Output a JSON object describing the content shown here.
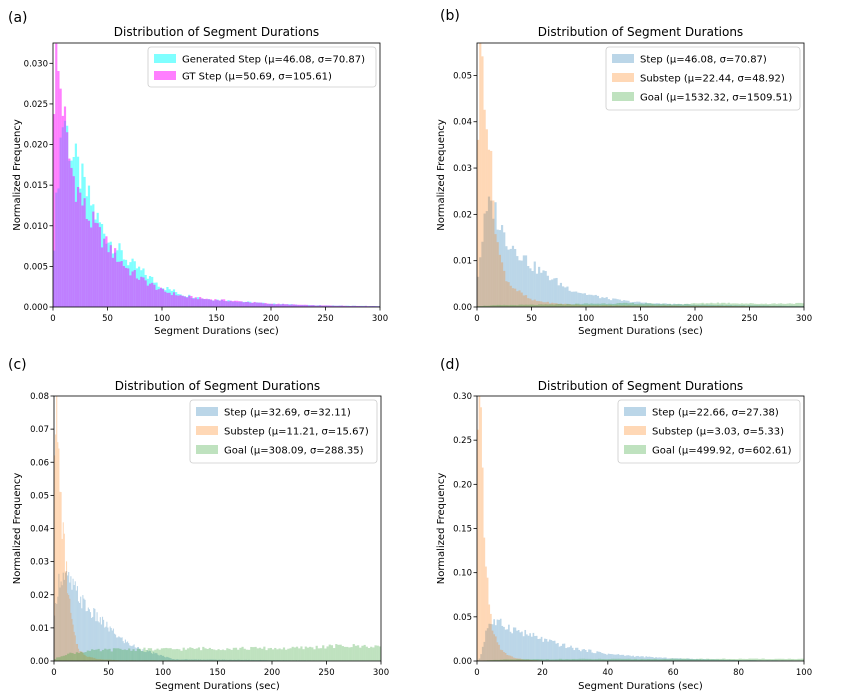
{
  "chart_data": [
    {
      "panel": "(a)",
      "type": "bar",
      "subtype": "overlaid-histogram",
      "title": "Distribution of Segment Durations",
      "xlabel": "Segment Durations (sec)",
      "ylabel": "Normalized Frequency",
      "xlim": [
        0,
        300
      ],
      "ylim": [
        0,
        0.0325
      ],
      "xticks": [
        0,
        50,
        100,
        150,
        200,
        250,
        300
      ],
      "yticks": [
        0.0,
        0.005,
        0.01,
        0.015,
        0.02,
        0.025,
        0.03
      ],
      "yticklabels": [
        "0.000",
        "0.005",
        "0.010",
        "0.015",
        "0.020",
        "0.025",
        "0.030"
      ],
      "legend_position": "top-right",
      "series": [
        {
          "name": "Generated Step",
          "label": "Generated Step (μ=46.08, σ=70.87)",
          "color": "#00ffff",
          "opacity": 0.5,
          "mu": 46.08,
          "sigma": 70.87,
          "bin_width": 2,
          "bins_x": [
            0,
            6,
            8,
            10,
            12,
            14,
            16,
            18,
            20,
            24,
            28,
            32,
            36,
            40,
            50,
            60,
            70,
            80,
            90,
            100,
            120,
            140,
            160,
            180,
            200,
            240,
            300
          ],
          "bins_y": [
            0.006,
            0.019,
            0.022,
            0.024,
            0.0225,
            0.0205,
            0.0195,
            0.0185,
            0.018,
            0.0165,
            0.015,
            0.0135,
            0.0125,
            0.011,
            0.0085,
            0.007,
            0.0055,
            0.0045,
            0.0035,
            0.0025,
            0.0015,
            0.001,
            0.0008,
            0.0006,
            0.0004,
            0.0002,
            0.0001
          ]
        },
        {
          "name": "GT Step",
          "label": "GT Step (μ=50.69, σ=105.61)",
          "color": "#ff00ff",
          "opacity": 0.5,
          "mu": 50.69,
          "sigma": 105.61,
          "bin_width": 2,
          "bins_x": [
            0,
            2,
            4,
            6,
            8,
            10,
            12,
            14,
            16,
            18,
            20,
            24,
            28,
            32,
            36,
            40,
            50,
            60,
            70,
            80,
            90,
            100,
            120,
            140,
            160,
            180,
            200,
            240,
            300
          ],
          "bins_y": [
            0.021,
            0.0315,
            0.029,
            0.028,
            0.0265,
            0.024,
            0.021,
            0.019,
            0.0175,
            0.0165,
            0.0155,
            0.014,
            0.0125,
            0.011,
            0.0105,
            0.0095,
            0.0075,
            0.006,
            0.0045,
            0.0035,
            0.0028,
            0.002,
            0.0013,
            0.001,
            0.0008,
            0.0006,
            0.0004,
            0.0002,
            0.0001
          ]
        }
      ]
    },
    {
      "panel": "(b)",
      "type": "bar",
      "subtype": "overlaid-histogram",
      "title": "Distribution of Segment Durations",
      "xlabel": "Segment Durations (sec)",
      "ylabel": "Normalized Frequency",
      "xlim": [
        0,
        300
      ],
      "ylim": [
        0,
        0.057
      ],
      "xticks": [
        0,
        50,
        100,
        150,
        200,
        250,
        300
      ],
      "yticks": [
        0.0,
        0.01,
        0.02,
        0.03,
        0.04,
        0.05
      ],
      "yticklabels": [
        "0.00",
        "0.01",
        "0.02",
        "0.03",
        "0.04",
        "0.05"
      ],
      "legend_position": "top-right",
      "series": [
        {
          "name": "Step",
          "label": "Step (μ=46.08, σ=70.87)",
          "color": "#1f77b4",
          "opacity": 0.3,
          "mu": 46.08,
          "sigma": 70.87,
          "bin_width": 2,
          "bins_x": [
            0,
            6,
            10,
            14,
            18,
            22,
            26,
            30,
            40,
            50,
            60,
            70,
            80,
            90,
            100,
            120,
            140,
            160,
            200,
            300
          ],
          "bins_y": [
            0.005,
            0.017,
            0.021,
            0.022,
            0.02,
            0.017,
            0.015,
            0.014,
            0.0115,
            0.009,
            0.0075,
            0.006,
            0.0045,
            0.0035,
            0.0028,
            0.0018,
            0.0012,
            0.0008,
            0.0005,
            0.0002
          ]
        },
        {
          "name": "Substep",
          "label": "Substep (μ=22.44, σ=48.92)",
          "color": "#ff7f0e",
          "opacity": 0.3,
          "mu": 22.44,
          "sigma": 48.92,
          "bin_width": 2,
          "bins_x": [
            0,
            2,
            4,
            6,
            8,
            10,
            12,
            14,
            16,
            18,
            20,
            24,
            30,
            40,
            50,
            70,
            100,
            300
          ],
          "bins_y": [
            0.03,
            0.049,
            0.055,
            0.052,
            0.047,
            0.04,
            0.033,
            0.026,
            0.021,
            0.016,
            0.012,
            0.008,
            0.005,
            0.003,
            0.0015,
            0.0008,
            0.0004,
            0.0001
          ]
        },
        {
          "name": "Goal",
          "label": "Goal (μ=1532.32, σ=1509.51)",
          "color": "#2ca02c",
          "opacity": 0.3,
          "mu": 1532.32,
          "sigma": 1509.51,
          "bin_width": 2,
          "bins_x": [
            0,
            20,
            60,
            100,
            140,
            180,
            220,
            260,
            300
          ],
          "bins_y": [
            0.0002,
            0.0004,
            0.0005,
            0.0007,
            0.0008,
            0.0006,
            0.0009,
            0.0007,
            0.0008
          ]
        }
      ]
    },
    {
      "panel": "(c)",
      "type": "bar",
      "subtype": "overlaid-histogram",
      "title": "Distribution of Segment Durations",
      "xlabel": "Segment Durations (sec)",
      "ylabel": "Normalized Frequency",
      "xlim": [
        0,
        300
      ],
      "ylim": [
        0,
        0.08
      ],
      "xticks": [
        0,
        50,
        100,
        150,
        200,
        250,
        300
      ],
      "yticks": [
        0.0,
        0.01,
        0.02,
        0.03,
        0.04,
        0.05,
        0.06,
        0.07,
        0.08
      ],
      "yticklabels": [
        "0.00",
        "0.01",
        "0.02",
        "0.03",
        "0.04",
        "0.05",
        "0.06",
        "0.07",
        "0.08"
      ],
      "legend_position": "top-right",
      "series": [
        {
          "name": "Step",
          "label": "Step (μ=32.69, σ=32.11)",
          "color": "#1f77b4",
          "opacity": 0.3,
          "mu": 32.69,
          "sigma": 32.11,
          "bin_width": 1,
          "bins_x": [
            0,
            3,
            6,
            10,
            14,
            18,
            22,
            26,
            30,
            40,
            50,
            60,
            70,
            80,
            90,
            100,
            110,
            300
          ],
          "bins_y": [
            0.01,
            0.022,
            0.026,
            0.025,
            0.024,
            0.022,
            0.02,
            0.018,
            0.016,
            0.013,
            0.01,
            0.007,
            0.005,
            0.0035,
            0.0025,
            0.0015,
            0.0005,
            0.0
          ]
        },
        {
          "name": "Substep",
          "label": "Substep (μ=11.21, σ=15.67)",
          "color": "#ff7f0e",
          "opacity": 0.3,
          "mu": 11.21,
          "sigma": 15.67,
          "bin_width": 1,
          "bins_x": [
            0,
            1,
            2,
            4,
            6,
            8,
            10,
            12,
            14,
            16,
            18,
            20,
            24,
            30,
            40,
            60,
            300
          ],
          "bins_y": [
            0.06,
            0.08,
            0.075,
            0.062,
            0.05,
            0.04,
            0.032,
            0.025,
            0.018,
            0.013,
            0.009,
            0.006,
            0.003,
            0.0015,
            0.0006,
            0.0002,
            0.0
          ]
        },
        {
          "name": "Goal",
          "label": "Goal (μ=308.09, σ=288.35)",
          "color": "#2ca02c",
          "opacity": 0.3,
          "mu": 308.09,
          "sigma": 288.35,
          "bin_width": 2,
          "bins_x": [
            0,
            10,
            30,
            60,
            100,
            140,
            180,
            220,
            260,
            300
          ],
          "bins_y": [
            0.0005,
            0.002,
            0.003,
            0.0035,
            0.0035,
            0.0038,
            0.0038,
            0.0038,
            0.0045,
            0.0045
          ]
        }
      ]
    },
    {
      "panel": "(d)",
      "type": "bar",
      "subtype": "overlaid-histogram",
      "title": "Distribution of Segment Durations",
      "xlabel": "Segment Durations (sec)",
      "ylabel": "Normalized Frequency",
      "xlim": [
        0,
        100
      ],
      "ylim": [
        0,
        0.3
      ],
      "xticks": [
        0,
        20,
        40,
        60,
        80,
        100
      ],
      "yticks": [
        0.0,
        0.05,
        0.1,
        0.15,
        0.2,
        0.25,
        0.3
      ],
      "yticklabels": [
        "0.00",
        "0.05",
        "0.10",
        "0.15",
        "0.20",
        "0.25",
        "0.30"
      ],
      "legend_position": "top-right",
      "series": [
        {
          "name": "Step",
          "label": "Step (μ=22.66, σ=27.38)",
          "color": "#1f77b4",
          "opacity": 0.3,
          "mu": 22.66,
          "sigma": 27.38,
          "bin_width": 0.5,
          "bins_x": [
            0,
            1,
            2,
            3,
            4,
            5,
            6,
            8,
            10,
            14,
            18,
            22,
            26,
            30,
            35,
            40,
            50,
            60,
            70,
            80,
            100
          ],
          "bins_y": [
            0.0,
            0.004,
            0.02,
            0.038,
            0.043,
            0.044,
            0.043,
            0.041,
            0.038,
            0.032,
            0.027,
            0.022,
            0.018,
            0.014,
            0.011,
            0.008,
            0.005,
            0.003,
            0.002,
            0.001,
            0.0005
          ]
        },
        {
          "name": "Substep",
          "label": "Substep (μ=3.03, σ=5.33)",
          "color": "#ff7f0e",
          "opacity": 0.3,
          "mu": 3.03,
          "sigma": 5.33,
          "bin_width": 0.5,
          "bins_x": [
            0,
            0.5,
            1,
            1.5,
            2,
            2.5,
            3,
            3.5,
            4,
            5,
            6,
            7,
            8,
            10,
            12,
            15,
            20,
            100
          ],
          "bins_y": [
            0.19,
            0.3,
            0.27,
            0.23,
            0.17,
            0.13,
            0.1,
            0.075,
            0.055,
            0.035,
            0.022,
            0.015,
            0.01,
            0.006,
            0.003,
            0.0015,
            0.0005,
            0.0
          ]
        },
        {
          "name": "Goal",
          "label": "Goal (μ=499.92, σ=602.61)",
          "color": "#2ca02c",
          "opacity": 0.3,
          "mu": 499.92,
          "sigma": 602.61,
          "bin_width": 1,
          "bins_x": [
            0,
            5,
            10,
            20,
            30,
            40,
            50,
            60,
            70,
            80,
            90,
            100
          ],
          "bins_y": [
            0.0005,
            0.001,
            0.0018,
            0.002,
            0.0022,
            0.0022,
            0.0022,
            0.0024,
            0.0024,
            0.0024,
            0.0024,
            0.0024
          ]
        }
      ]
    }
  ]
}
